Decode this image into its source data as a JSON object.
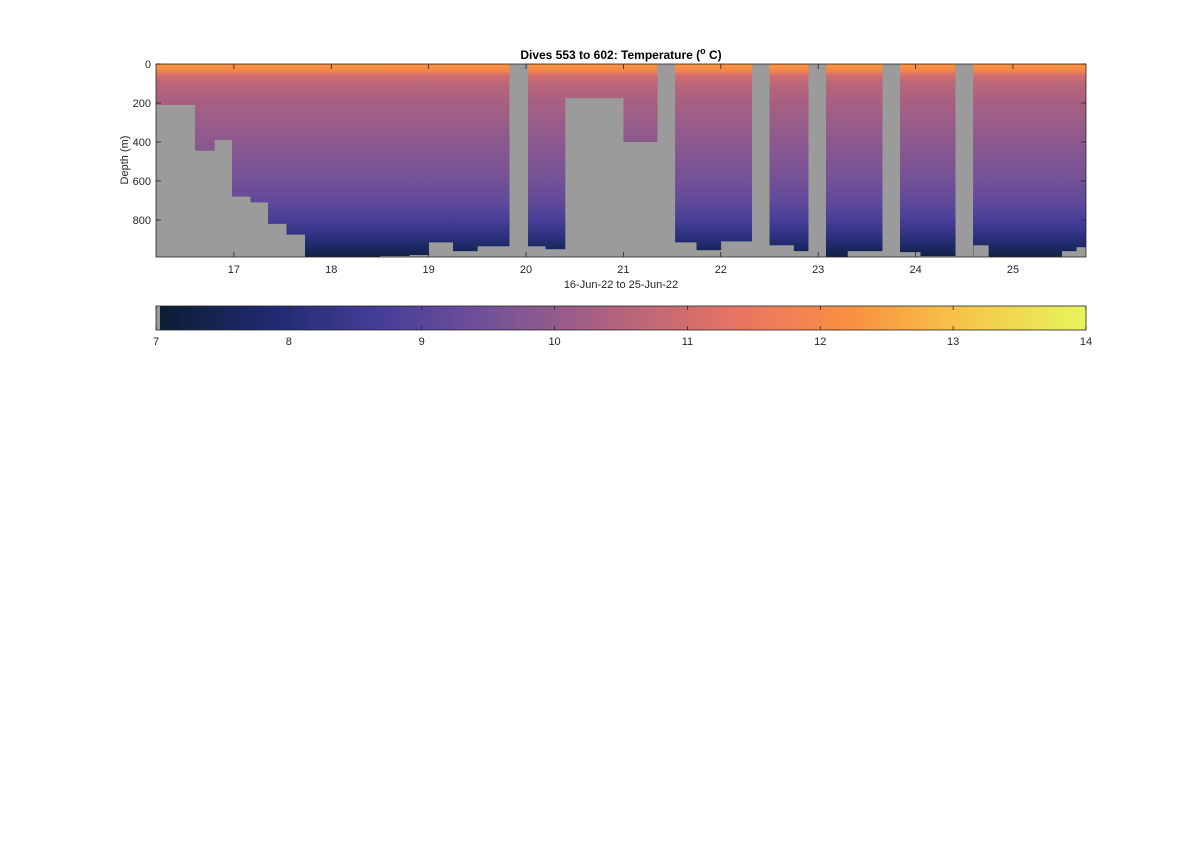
{
  "chart_data": {
    "type": "heatmap",
    "title_main": "Dives 553 to 602: Temperature (",
    "title_sup": "o",
    "title_end": " C)",
    "xlabel": "16-Jun-22 to 25-Jun-22",
    "ylabel": "Depth (m)",
    "x_unit": "day of June 2022",
    "xlim": [
      16.2,
      25.75
    ],
    "ylim": [
      0,
      990
    ],
    "y_reversed": true,
    "x_ticks": [
      17,
      18,
      19,
      20,
      21,
      22,
      23,
      24,
      25
    ],
    "x_tick_labels": [
      "17",
      "18",
      "19",
      "20",
      "21",
      "22",
      "23",
      "24",
      "25"
    ],
    "y_ticks": [
      0,
      200,
      400,
      600,
      800
    ],
    "y_tick_labels": [
      "0",
      "200",
      "400",
      "600",
      "800"
    ],
    "no_data_color": "#9b9b9b",
    "colormap": [
      "#0b1e33",
      "#202a70",
      "#493f9a",
      "#7a5496",
      "#b4647c",
      "#e87464",
      "#fa9141",
      "#f5c84a",
      "#e6f55a"
    ],
    "colorbar": {
      "cmin": 7,
      "cmax": 14,
      "ticks": [
        7,
        8,
        9,
        10,
        11,
        12,
        13,
        14
      ],
      "tick_labels": [
        "7",
        "8",
        "9",
        "10",
        "11",
        "12",
        "13",
        "14"
      ]
    },
    "no_data_columns": [
      [
        19.83,
        20.02
      ],
      [
        21.35,
        21.53
      ],
      [
        22.32,
        22.5
      ],
      [
        22.9,
        23.08
      ],
      [
        23.66,
        23.84
      ],
      [
        24.41,
        24.59
      ]
    ],
    "profile_max_depth": [
      [
        16.2,
        210
      ],
      [
        16.6,
        445
      ],
      [
        16.8,
        390
      ],
      [
        16.98,
        680
      ],
      [
        17.17,
        710
      ],
      [
        17.35,
        820
      ],
      [
        17.54,
        875
      ],
      [
        17.73,
        990
      ],
      [
        18.5,
        985
      ],
      [
        18.8,
        980
      ],
      [
        19.0,
        915
      ],
      [
        19.25,
        960
      ],
      [
        19.5,
        935
      ],
      [
        20.02,
        935
      ],
      [
        20.2,
        950
      ],
      [
        20.4,
        175
      ],
      [
        21.0,
        400
      ],
      [
        21.53,
        915
      ],
      [
        21.75,
        955
      ],
      [
        22.0,
        910
      ],
      [
        22.5,
        930
      ],
      [
        22.75,
        960
      ],
      [
        23.08,
        990
      ],
      [
        23.3,
        960
      ],
      [
        23.84,
        965
      ],
      [
        24.05,
        985
      ],
      [
        24.59,
        930
      ],
      [
        24.75,
        990
      ],
      [
        25.25,
        990
      ],
      [
        25.5,
        960
      ],
      [
        25.65,
        940
      ],
      [
        25.75,
        940
      ]
    ],
    "temperature_profile": {
      "depth": [
        0,
        20,
        40,
        60,
        100,
        200,
        400,
        600,
        700,
        800,
        880,
        940,
        990
      ],
      "temp": [
        12.3,
        12.2,
        11.7,
        11.0,
        10.6,
        10.3,
        9.9,
        9.5,
        9.2,
        8.7,
        8.2,
        7.7,
        7.2
      ]
    }
  }
}
